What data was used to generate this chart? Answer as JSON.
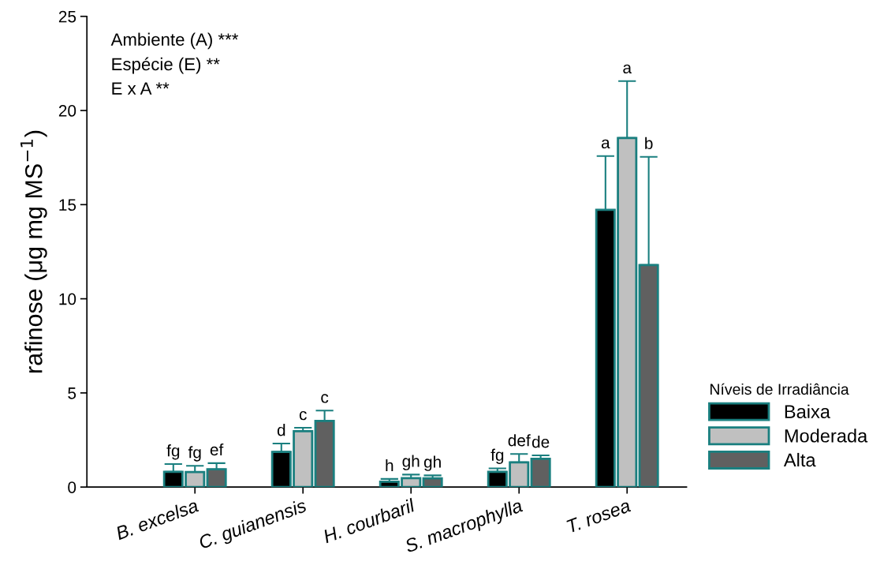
{
  "chart_data": {
    "type": "bar",
    "ylabel": "rafinose (μg mg MS$^{−1}$)",
    "legend_title": "Níveis de Irradiância",
    "categories": [
      "B. excelsa",
      "C. guianensis",
      "H. courbaril",
      "S. macrophylla",
      "T. rosea"
    ],
    "series": [
      {
        "name": "Baixa",
        "color": "#000000",
        "values": [
          0.81,
          1.87,
          0.28,
          0.81,
          14.72
        ],
        "errors": [
          [
            0.81,
            1.22
          ],
          [
            1.87,
            2.31
          ],
          [
            0.28,
            0.43
          ],
          [
            0.81,
            0.99
          ],
          [
            14.72,
            17.58
          ]
        ]
      },
      {
        "name": "Moderada",
        "color": "#c0c0c0",
        "values": [
          0.8,
          2.97,
          0.47,
          1.31,
          18.54
        ],
        "errors": [
          [
            0.8,
            1.13
          ],
          [
            2.97,
            3.15
          ],
          [
            0.47,
            0.66
          ],
          [
            1.31,
            1.76
          ],
          [
            18.54,
            21.56
          ]
        ]
      },
      {
        "name": "Alta",
        "color": "#606060",
        "values": [
          0.94,
          3.51,
          0.46,
          1.5,
          11.79
        ],
        "errors": [
          [
            0.94,
            1.27
          ],
          [
            3.51,
            4.06
          ],
          [
            0.46,
            0.62
          ],
          [
            1.5,
            1.68
          ],
          [
            11.79,
            17.54
          ]
        ]
      }
    ],
    "ylim": [
      0,
      25
    ],
    "yticks": [
      0,
      5,
      10,
      15,
      20,
      25
    ],
    "grid": false,
    "legend": "right",
    "annotations": [
      "Ambiente (A) ***",
      "Espécie (E) **",
      "E x A **",
      "fg",
      "fg",
      "ef",
      "d",
      "c",
      "c",
      "h",
      "gh",
      "gh",
      "fg",
      "def",
      "de",
      "a",
      "a",
      "b"
    ]
  }
}
